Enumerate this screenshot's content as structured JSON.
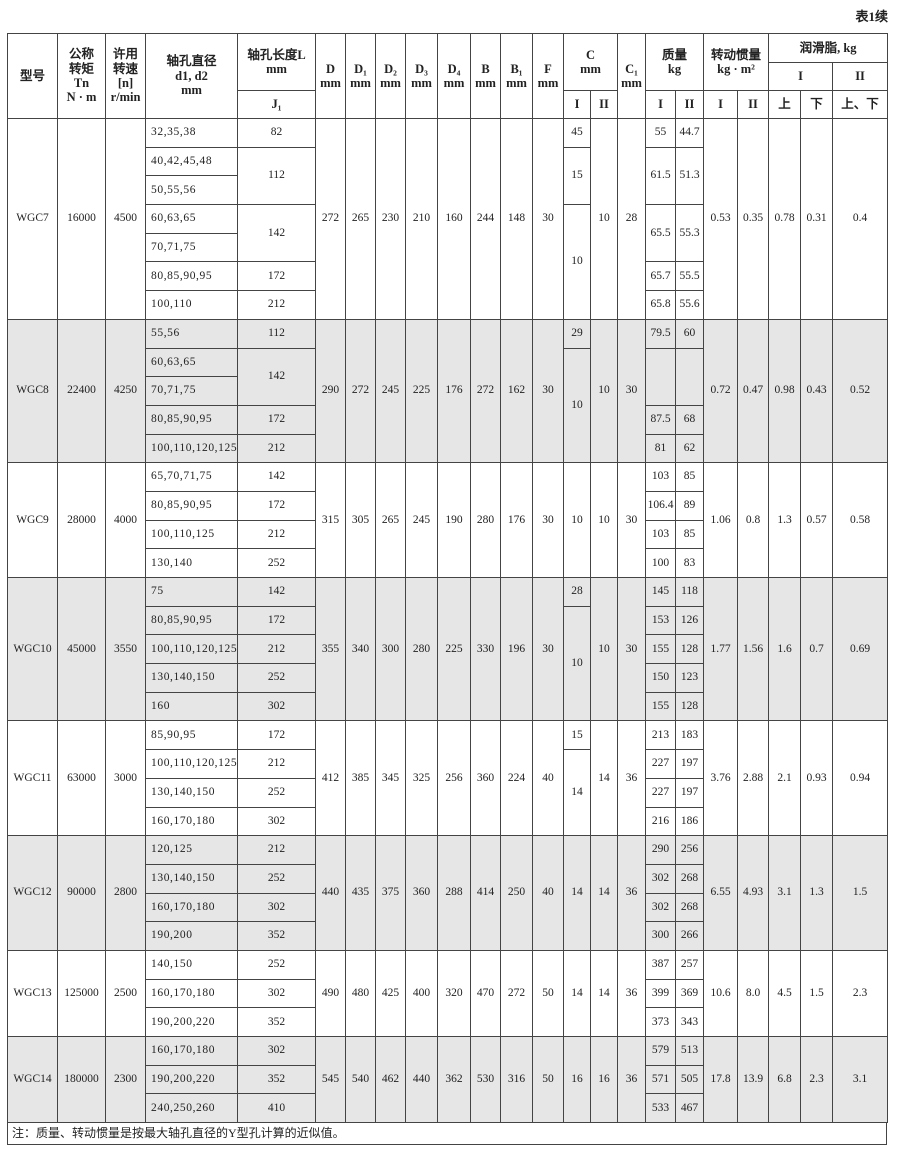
{
  "caption": "表1续",
  "header": {
    "model": [
      "型号"
    ],
    "torque": [
      "公称",
      "转矩",
      "Tn",
      "N · m"
    ],
    "speed": [
      "许用",
      "转速",
      "[n]",
      "r/min"
    ],
    "bore": [
      "轴孔直径",
      "d1, d2",
      "mm"
    ],
    "length": [
      "轴孔长度L",
      "mm"
    ],
    "length_sub": "J₁",
    "dims": [
      [
        "D",
        "mm"
      ],
      [
        "D₁",
        "mm"
      ],
      [
        "D₂",
        "mm"
      ],
      [
        "D₃",
        "mm"
      ],
      [
        "D₄",
        "mm"
      ],
      [
        "B",
        "mm"
      ],
      [
        "B₁",
        "mm"
      ],
      [
        "F",
        "mm"
      ]
    ],
    "c": [
      "C",
      "mm"
    ],
    "c_sub": [
      "I",
      "II"
    ],
    "c1": [
      "C₁",
      "mm"
    ],
    "mass": [
      "质量",
      "kg"
    ],
    "mass_sub": [
      "I",
      "II"
    ],
    "inertia": [
      "转动惯量",
      "kg · m²"
    ],
    "inertia_sub": [
      "I",
      "II"
    ],
    "grease": "润滑脂, kg",
    "grease_sub": [
      "I",
      "II"
    ],
    "grease_pos": [
      "上",
      "下",
      "上、下"
    ]
  },
  "groups": [
    {
      "model": "WGC7",
      "torque": "16000",
      "speed": "4500",
      "bore": [
        "32,35,38",
        "40,42,45,48",
        "50,55,56",
        "60,63,65",
        "70,71,75",
        "80,85,90,95",
        "100,110"
      ],
      "length": [
        [
          "82"
        ],
        [
          "112",
          null
        ],
        [
          "142",
          null
        ],
        [
          "172"
        ],
        [
          "212"
        ]
      ],
      "dims": [
        "272",
        "265",
        "230",
        "210",
        "160",
        "244",
        "148",
        "30"
      ],
      "c_I": [
        [
          "45"
        ],
        [
          "15",
          null
        ],
        [
          "10",
          null,
          null,
          null
        ]
      ],
      "c_II": "10",
      "c1": "28",
      "mass_I": [
        [
          "55"
        ],
        [
          "61.5",
          null
        ],
        [
          "65.5",
          null
        ],
        [
          "65.7"
        ],
        [
          "65.8"
        ]
      ],
      "mass_II": [
        [
          "44.7"
        ],
        [
          "51.3",
          null
        ],
        [
          "55.3",
          null
        ],
        [
          "55.5"
        ],
        [
          "55.6"
        ]
      ],
      "inertia": [
        "0.53",
        "0.35"
      ],
      "grease": [
        "0.78",
        "0.31",
        "0.4"
      ]
    },
    {
      "model": "WGC8",
      "torque": "22400",
      "speed": "4250",
      "bore": [
        "55,56",
        "60,63,65",
        "70,71,75",
        "80,85,90,95",
        "100,110,120,125"
      ],
      "length": [
        [
          "112"
        ],
        [
          "142",
          null
        ],
        [
          "172"
        ],
        [
          "212"
        ]
      ],
      "dims": [
        "290",
        "272",
        "245",
        "225",
        "176",
        "272",
        "162",
        "30"
      ],
      "c_I": [
        [
          "29"
        ],
        [
          "10",
          null,
          null,
          null
        ]
      ],
      "c_II": "10",
      "c1": "30",
      "mass_I": [
        [
          "79.5"
        ],
        [
          null,
          null
        ],
        [
          "87.5"
        ],
        [
          "81"
        ]
      ],
      "mass_II": [
        [
          "60"
        ],
        [
          null,
          null
        ],
        [
          "68"
        ],
        [
          "62"
        ]
      ],
      "inertia": [
        "0.72",
        "0.47"
      ],
      "grease": [
        "0.98",
        "0.43",
        "0.52"
      ]
    },
    {
      "model": "WGC9",
      "torque": "28000",
      "speed": "4000",
      "bore": [
        "65,70,71,75",
        "80,85,90,95",
        "100,110,125",
        "130,140"
      ],
      "length": [
        [
          "142"
        ],
        [
          "172"
        ],
        [
          "212"
        ],
        [
          "252"
        ]
      ],
      "dims": [
        "315",
        "305",
        "265",
        "245",
        "190",
        "280",
        "176",
        "30"
      ],
      "c_I": [
        [
          "10",
          null,
          null,
          null
        ]
      ],
      "c_II": "10",
      "c1": "30",
      "mass_I": [
        [
          "103"
        ],
        [
          "106.4"
        ],
        [
          "103"
        ],
        [
          "100"
        ]
      ],
      "mass_II": [
        [
          "85"
        ],
        [
          "89"
        ],
        [
          "85"
        ],
        [
          "83"
        ]
      ],
      "inertia": [
        "1.06",
        "0.8"
      ],
      "grease": [
        "1.3",
        "0.57",
        "0.58"
      ]
    },
    {
      "model": "WGC10",
      "torque": "45000",
      "speed": "3550",
      "bore": [
        "75",
        "80,85,90,95",
        "100,110,120,125",
        "130,140,150",
        "160"
      ],
      "length": [
        [
          "142"
        ],
        [
          "172"
        ],
        [
          "212"
        ],
        [
          "252"
        ],
        [
          "302"
        ]
      ],
      "dims": [
        "355",
        "340",
        "300",
        "280",
        "225",
        "330",
        "196",
        "30"
      ],
      "c_I": [
        [
          "28"
        ],
        [
          "10",
          null,
          null,
          null
        ]
      ],
      "c_II": "10",
      "c1": "30",
      "mass_I": [
        [
          "145"
        ],
        [
          "153"
        ],
        [
          "155"
        ],
        [
          "150"
        ],
        [
          "155"
        ]
      ],
      "mass_II": [
        [
          "118"
        ],
        [
          "126"
        ],
        [
          "128"
        ],
        [
          "123"
        ],
        [
          "128"
        ]
      ],
      "inertia": [
        "1.77",
        "1.56"
      ],
      "grease": [
        "1.6",
        "0.7",
        "0.69"
      ]
    },
    {
      "model": "WGC11",
      "torque": "63000",
      "speed": "3000",
      "bore": [
        "85,90,95",
        "100,110,120,125",
        "130,140,150",
        "160,170,180"
      ],
      "length": [
        [
          "172"
        ],
        [
          "212"
        ],
        [
          "252"
        ],
        [
          "302"
        ]
      ],
      "dims": [
        "412",
        "385",
        "345",
        "325",
        "256",
        "360",
        "224",
        "40"
      ],
      "c_I": [
        [
          "15"
        ],
        [
          "14",
          null,
          null
        ]
      ],
      "c_II": "14",
      "c1": "36",
      "mass_I": [
        [
          "213"
        ],
        [
          "227"
        ],
        [
          "227"
        ],
        [
          "216"
        ]
      ],
      "mass_II": [
        [
          "183"
        ],
        [
          "197"
        ],
        [
          "197"
        ],
        [
          "186"
        ]
      ],
      "inertia": [
        "3.76",
        "2.88"
      ],
      "grease": [
        "2.1",
        "0.93",
        "0.94"
      ]
    },
    {
      "model": "WGC12",
      "torque": "90000",
      "speed": "2800",
      "bore": [
        "120,125",
        "130,140,150",
        "160,170,180",
        "190,200"
      ],
      "length": [
        [
          "212"
        ],
        [
          "252"
        ],
        [
          "302"
        ],
        [
          "352"
        ]
      ],
      "dims": [
        "440",
        "435",
        "375",
        "360",
        "288",
        "414",
        "250",
        "40"
      ],
      "c_I": [
        [
          "14",
          null,
          null,
          null
        ]
      ],
      "c_II": "14",
      "c1": "36",
      "mass_I": [
        [
          "290"
        ],
        [
          "302"
        ],
        [
          "302"
        ],
        [
          "300"
        ]
      ],
      "mass_II": [
        [
          "256"
        ],
        [
          "268"
        ],
        [
          "268"
        ],
        [
          "266"
        ]
      ],
      "inertia": [
        "6.55",
        "4.93"
      ],
      "grease": [
        "3.1",
        "1.3",
        "1.5"
      ]
    },
    {
      "model": "WGC13",
      "torque": "125000",
      "speed": "2500",
      "bore": [
        "140,150",
        "160,170,180",
        "190,200,220"
      ],
      "length": [
        [
          "252"
        ],
        [
          "302"
        ],
        [
          "352"
        ]
      ],
      "dims": [
        "490",
        "480",
        "425",
        "400",
        "320",
        "470",
        "272",
        "50"
      ],
      "c_I": [
        [
          "14",
          null,
          null
        ]
      ],
      "c_II": "14",
      "c1": "36",
      "mass_I": [
        [
          "387"
        ],
        [
          "399"
        ],
        [
          "373"
        ]
      ],
      "mass_II": [
        [
          "257"
        ],
        [
          "369"
        ],
        [
          "343"
        ]
      ],
      "inertia": [
        "10.6",
        "8.0"
      ],
      "grease": [
        "4.5",
        "1.5",
        "2.3"
      ]
    },
    {
      "model": "WGC14",
      "torque": "180000",
      "speed": "2300",
      "bore": [
        "160,170,180",
        "190,200,220",
        "240,250,260"
      ],
      "length": [
        [
          "302"
        ],
        [
          "352"
        ],
        [
          "410"
        ]
      ],
      "dims": [
        "545",
        "540",
        "462",
        "440",
        "362",
        "530",
        "316",
        "50"
      ],
      "c_I": [
        [
          "16",
          null,
          null
        ]
      ],
      "c_II": "16",
      "c1": "36",
      "mass_I": [
        [
          "579"
        ],
        [
          "571"
        ],
        [
          "533"
        ]
      ],
      "mass_II": [
        [
          "513"
        ],
        [
          "505"
        ],
        [
          "467"
        ]
      ],
      "inertia": [
        "17.8",
        "13.9"
      ],
      "grease": [
        "6.8",
        "2.3",
        "3.1"
      ]
    }
  ],
  "note": "注：质量、转动惯量是按最大轴孔直径的Y型孔计算的近似值。"
}
